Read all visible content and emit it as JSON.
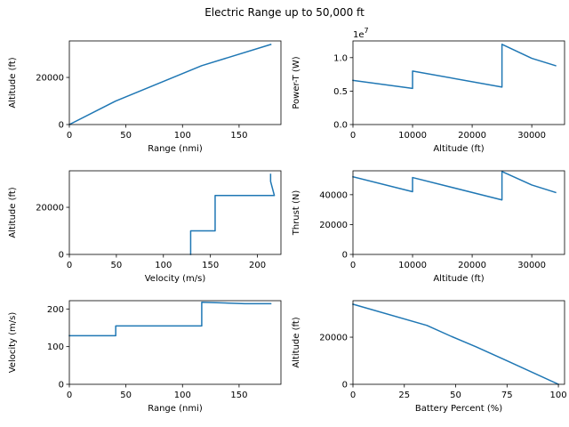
{
  "title": "Electric Range up to 50,000 ft",
  "chart_data": [
    {
      "type": "line",
      "xlabel": "Range (nmi)",
      "ylabel": "Altitude (ft)",
      "xlim": [
        0,
        187
      ],
      "ylim": [
        0,
        35500
      ],
      "xticks": [
        0,
        50,
        100,
        150
      ],
      "yticks": [
        0,
        20000
      ],
      "series": [
        {
          "x": [
            0,
            41,
            117,
            178
          ],
          "y": [
            0,
            10000,
            25000,
            34000
          ]
        }
      ]
    },
    {
      "type": "line",
      "xlabel": "Altitude (ft)",
      "ylabel": "Power-T (W)",
      "offset_text": "1e7",
      "xlim": [
        0,
        35500
      ],
      "ylim": [
        0,
        12500000
      ],
      "xticks": [
        0,
        10000,
        20000,
        30000
      ],
      "yticks": [
        0,
        5000000,
        10000000
      ],
      "ytick_labels": [
        "0.0",
        "0.5",
        "1.0"
      ],
      "series": [
        {
          "x": [
            0,
            10000,
            10000,
            25000,
            25000,
            30000,
            34000
          ],
          "y": [
            6600000,
            5400000,
            8000000,
            5600000,
            12000000,
            9900000,
            8800000
          ]
        }
      ]
    },
    {
      "type": "line",
      "xlabel": "Velocity (m/s)",
      "ylabel": "Altitude (ft)",
      "xlim": [
        0,
        225
      ],
      "ylim": [
        0,
        35500
      ],
      "xticks": [
        0,
        50,
        100,
        150,
        200
      ],
      "yticks": [
        0,
        20000
      ],
      "series": [
        {
          "x": [
            129,
            129,
            155,
            155,
            218,
            214,
            214
          ],
          "y": [
            0,
            10000,
            10000,
            25000,
            25000,
            31000,
            34000
          ]
        }
      ]
    },
    {
      "type": "line",
      "xlabel": "Altitude (ft)",
      "ylabel": "Thrust (N)",
      "xlim": [
        0,
        35500
      ],
      "ylim": [
        0,
        56000
      ],
      "xticks": [
        0,
        10000,
        20000,
        30000
      ],
      "yticks": [
        0,
        20000,
        40000
      ],
      "series": [
        {
          "x": [
            0,
            10000,
            10000,
            25000,
            25000,
            30000,
            34000
          ],
          "y": [
            52000,
            42000,
            51500,
            36500,
            55500,
            46500,
            41500
          ]
        }
      ]
    },
    {
      "type": "line",
      "xlabel": "Range (nmi)",
      "ylabel": "Velocity (m/s)",
      "xlim": [
        0,
        187
      ],
      "ylim": [
        0,
        222
      ],
      "xticks": [
        0,
        50,
        100,
        150
      ],
      "yticks": [
        0,
        100,
        200
      ],
      "series": [
        {
          "x": [
            0,
            41,
            41,
            117,
            117,
            155,
            178
          ],
          "y": [
            129,
            129,
            155,
            155,
            218,
            214,
            214
          ]
        }
      ]
    },
    {
      "type": "line",
      "xlabel": "Battery Percent (%)",
      "ylabel": "Altitude (ft)",
      "xlim": [
        0,
        103
      ],
      "ylim": [
        0,
        35500
      ],
      "xticks": [
        0,
        25,
        50,
        75,
        100
      ],
      "yticks": [
        0,
        20000
      ],
      "series": [
        {
          "x": [
            100,
            75,
            60,
            48,
            36,
            0
          ],
          "y": [
            0,
            10000,
            15900,
            20300,
            25000,
            34000
          ]
        }
      ]
    }
  ]
}
